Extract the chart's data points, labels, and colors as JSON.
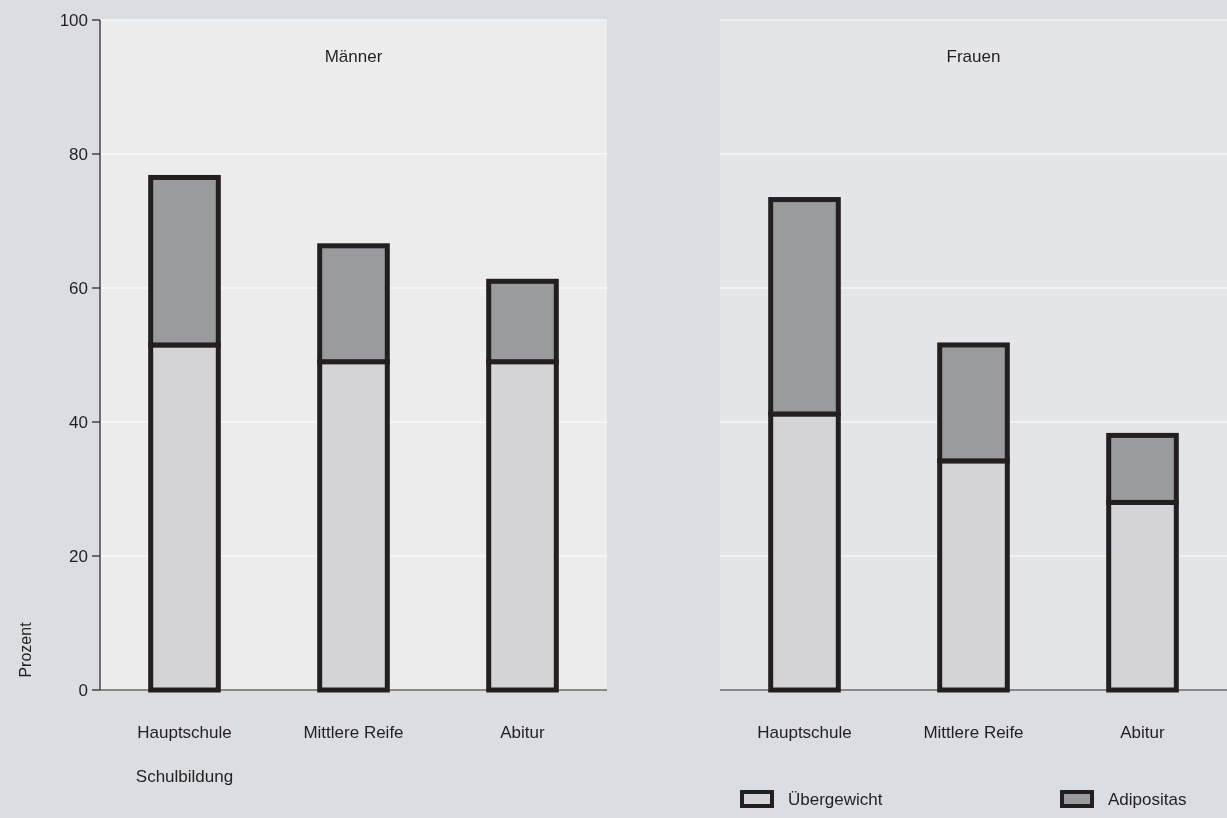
{
  "chart_data": [
    {
      "type": "bar",
      "title": "Männer",
      "xlabel": "Schulbildung",
      "ylabel": "Prozent",
      "categories": [
        "Hauptschule",
        "Mittlere Reife",
        "Abitur"
      ],
      "stacked": true,
      "series": [
        {
          "color": "#d4d4d6",
          "values": [
            51.5,
            49,
            49
          ]
        },
        {
          "color": "#9a9b9d",
          "values": [
            25,
            17.3,
            12
          ]
        }
      ],
      "ylim": [
        0,
        100
      ],
      "yticks": [
        0,
        20,
        40,
        60,
        80,
        100
      ],
      "grid": "y",
      "legend": false
    },
    {
      "type": "bar",
      "title": "Frauen",
      "categories": [
        "Hauptschule",
        "Mittlere Reife",
        "Abitur"
      ],
      "stacked": true,
      "series": [
        {
          "name": "Übergewicht",
          "color": "#d4d4d6",
          "values": [
            41.2,
            34.2,
            28
          ]
        },
        {
          "name": "Adipositas",
          "color": "#9a9b9d",
          "values": [
            32,
            17.3,
            10
          ]
        }
      ],
      "ylim": [
        0,
        100
      ],
      "yticks": [
        0,
        20,
        40,
        60,
        80,
        100
      ],
      "grid": "y",
      "tick_labels": "x",
      "legend": "bottom"
    }
  ]
}
